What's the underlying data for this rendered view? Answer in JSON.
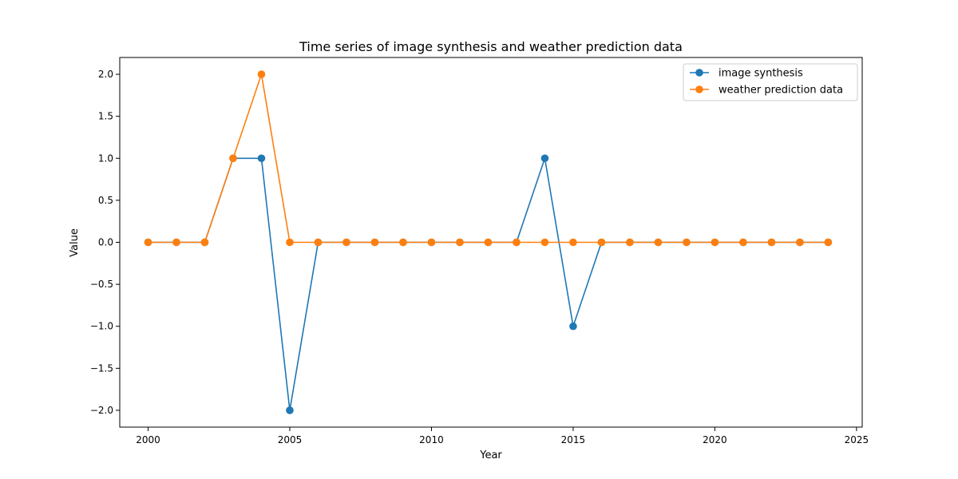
{
  "chart_data": {
    "type": "line",
    "title": "Time series of image synthesis and weather prediction data",
    "xlabel": "Year",
    "ylabel": "Value",
    "xlim": [
      1999.0,
      2025.2
    ],
    "ylim": [
      -2.2,
      2.2
    ],
    "xticks": [
      2000,
      2005,
      2010,
      2015,
      2020,
      2025
    ],
    "yticks": [
      -2.0,
      -1.5,
      -1.0,
      -0.5,
      0.0,
      0.5,
      1.0,
      1.5,
      2.0
    ],
    "ytick_labels": [
      "−2.0",
      "−1.5",
      "−1.0",
      "−0.5",
      "0.0",
      "0.5",
      "1.0",
      "1.5",
      "2.0"
    ],
    "grid": false,
    "legend_position": "top-right",
    "x": [
      2000,
      2001,
      2002,
      2003,
      2004,
      2005,
      2006,
      2007,
      2008,
      2009,
      2010,
      2011,
      2012,
      2013,
      2014,
      2015,
      2016,
      2017,
      2018,
      2019,
      2020,
      2021,
      2022,
      2023,
      2024
    ],
    "series": [
      {
        "name": "image synthesis",
        "color": "#1f77b4",
        "values": [
          0,
          0,
          0,
          1,
          1,
          -2,
          0,
          0,
          0,
          0,
          0,
          0,
          0,
          0,
          1,
          -1,
          0,
          0,
          0,
          0,
          0,
          0,
          0,
          0,
          0
        ]
      },
      {
        "name": "weather prediction data",
        "color": "#ff7f0e",
        "values": [
          0,
          0,
          0,
          1,
          2,
          0,
          0,
          0,
          0,
          0,
          0,
          0,
          0,
          0,
          0,
          0,
          0,
          0,
          0,
          0,
          0,
          0,
          0,
          0,
          0
        ]
      }
    ]
  }
}
